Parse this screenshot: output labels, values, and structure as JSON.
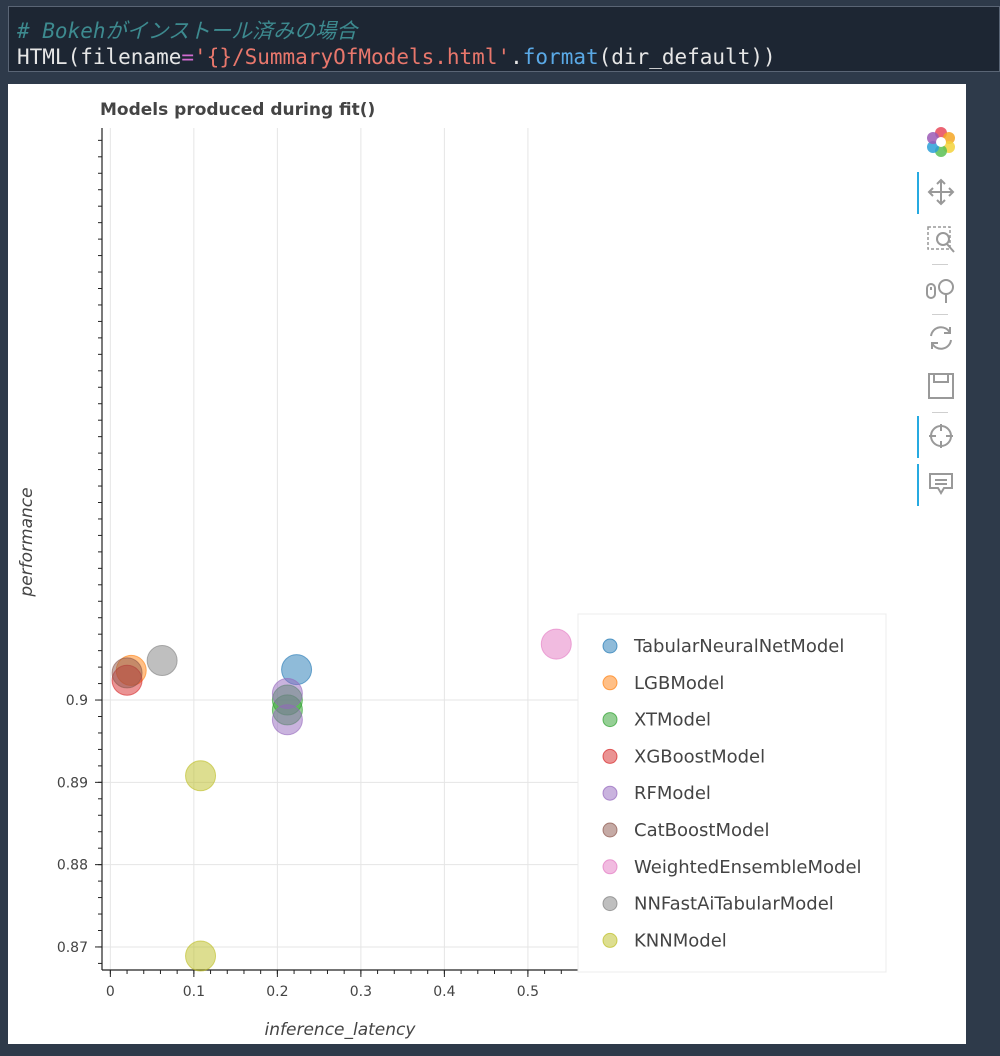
{
  "code": {
    "comment": "# Bokehがインストール済みの場合",
    "call_fn": "HTML",
    "call_open": "(filename",
    "call_eq": "=",
    "call_str": "'{}/SummaryOfModels.html'",
    "call_dot": ".",
    "call_method": "format",
    "call_args": "(dir_default))"
  },
  "toolbar": {
    "tools": [
      "bokeh-logo-icon",
      "pan-icon",
      "box-zoom-icon",
      "wheel-zoom-icon",
      "reset-icon",
      "save-icon",
      "crosshair-icon",
      "hover-icon"
    ]
  },
  "chart_data": {
    "type": "scatter",
    "title": "Models produced during fit()",
    "xlabel": "inference_latency",
    "ylabel": "performance",
    "xlim": [
      -0.01,
      0.56
    ],
    "ylim": [
      0.8672,
      0.9695
    ],
    "x_ticks": [
      0,
      0.1,
      0.2,
      0.3,
      0.4,
      0.5
    ],
    "x_tick_labels": [
      "0",
      "0.1",
      "0.2",
      "0.3",
      "0.4",
      "0.5"
    ],
    "y_ticks": [
      0.87,
      0.88,
      0.89,
      0.9
    ],
    "y_tick_labels": [
      "0.87",
      "0.88",
      "0.89",
      "0.9"
    ],
    "grid": true,
    "legend_position": "bottom-right",
    "series": [
      {
        "name": "TabularNeuralNetModel",
        "color": "#1f77b4",
        "points": [
          [
            0.223,
            0.9037
          ]
        ]
      },
      {
        "name": "LGBModel",
        "color": "#ff7f0e",
        "points": [
          [
            0.025,
            0.9036
          ]
        ]
      },
      {
        "name": "XTModel",
        "color": "#2ca02c",
        "points": [
          [
            0.212,
            0.9
          ],
          [
            0.212,
            0.8988
          ]
        ]
      },
      {
        "name": "XGBoostModel",
        "color": "#d62728",
        "points": [
          [
            0.02,
            0.9024
          ]
        ]
      },
      {
        "name": "RFModel",
        "color": "#9467bd",
        "points": [
          [
            0.212,
            0.9008
          ],
          [
            0.212,
            0.8976
          ]
        ]
      },
      {
        "name": "CatBoostModel",
        "color": "#8c564b",
        "points": [
          [
            0.02,
            0.9033
          ]
        ]
      },
      {
        "name": "WeightedEnsembleModel",
        "color": "#e377c2",
        "points": [
          [
            0.534,
            0.9068
          ]
        ]
      },
      {
        "name": "NNFastAiTabularModel",
        "color": "#7f7f7f",
        "points": [
          [
            0.062,
            0.9048
          ]
        ]
      },
      {
        "name": "KNNModel",
        "color": "#bcbd22",
        "points": [
          [
            0.108,
            0.8908
          ],
          [
            0.108,
            0.8689
          ]
        ]
      }
    ]
  }
}
